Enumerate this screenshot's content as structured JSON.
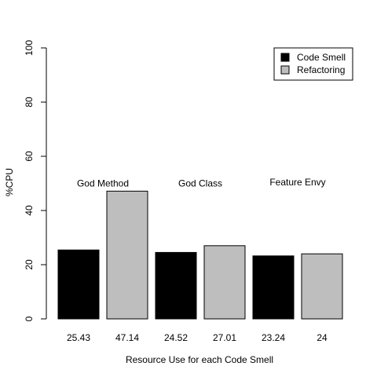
{
  "chart_data": {
    "type": "bar",
    "title": "",
    "xlabel": "Resource Use for each Code Smell",
    "ylabel": "%CPU",
    "ylim": [
      0,
      100
    ],
    "yticks": [
      0,
      20,
      40,
      60,
      80,
      100
    ],
    "grid": false,
    "legend_position": "top-right",
    "bars": [
      {
        "value": 25.43,
        "label": "25.43",
        "series": 0
      },
      {
        "value": 47.14,
        "label": "47.14",
        "series": 1
      },
      {
        "value": 24.52,
        "label": "24.52",
        "series": 0
      },
      {
        "value": 27.01,
        "label": "27.01",
        "series": 1
      },
      {
        "value": 23.24,
        "label": "23.24",
        "series": 0
      },
      {
        "value": 24,
        "label": "24",
        "series": 1
      }
    ],
    "series": [
      {
        "name": "Code Smell",
        "color": "#000000"
      },
      {
        "name": "Refactoring",
        "color": "#bebebe"
      }
    ],
    "groups": [
      {
        "label": "God Method",
        "y": 50
      },
      {
        "label": "God Class",
        "y": 50
      },
      {
        "label": "Feature Envy",
        "y": 50.5
      }
    ]
  }
}
